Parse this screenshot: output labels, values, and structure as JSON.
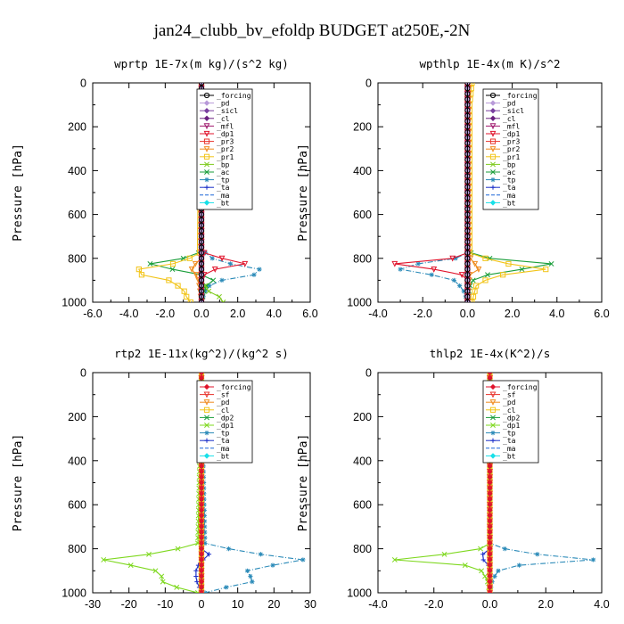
{
  "suptitle": "jan24_clubb_bv_efoldp  BUDGET at250E,-2N",
  "chart_data": [
    {
      "type": "line",
      "title": "wprtp  1E-7x(m kg)/(s^2 kg)",
      "ylabel": "Pressure [hPa]",
      "xlim": [
        -6,
        6
      ],
      "ylim": [
        1000,
        0
      ],
      "xticks": [
        "-6.0",
        "-4.0",
        "-2.0",
        "0.0",
        "2.0",
        "4.0",
        "6.0"
      ],
      "xtick_values": [
        -6,
        -4,
        -2,
        0,
        2,
        4,
        6
      ],
      "yticks": [
        "0",
        "200",
        "400",
        "600",
        "800",
        "1000"
      ],
      "ytick_values": [
        0,
        200,
        400,
        600,
        800,
        1000
      ],
      "legend_position": "upper-right",
      "series": [
        {
          "name": "_forcing",
          "color": "#000000",
          "marker": "circle",
          "p": [
            0,
            1000
          ],
          "v": [
            0,
            0
          ]
        },
        {
          "name": "_pd",
          "color": "#b89ad9",
          "marker": "diamond",
          "p": [
            0,
            1000
          ],
          "v": [
            0,
            0
          ]
        },
        {
          "name": "_sicl",
          "color": "#7a3fa0",
          "marker": "diamond",
          "p": [
            0,
            1000
          ],
          "v": [
            0,
            0
          ]
        },
        {
          "name": "_cl",
          "color": "#6a2080",
          "marker": "diamond",
          "p": [
            0,
            1000
          ],
          "v": [
            0,
            0
          ]
        },
        {
          "name": "_mfl",
          "color": "#a0186e",
          "marker": "tri",
          "p": [
            0,
            1000
          ],
          "v": [
            0,
            0
          ]
        },
        {
          "name": "_dp1",
          "color": "#e0142c",
          "marker": "tri",
          "p": [
            0,
            760,
            790,
            820,
            840,
            860,
            880,
            900,
            1000
          ],
          "v": [
            0,
            0,
            0.3,
            2.8,
            1.2,
            0.3,
            0.1,
            0,
            0
          ]
        },
        {
          "name": "_pr3",
          "color": "#e8342c",
          "marker": "square",
          "p": [
            0,
            1000
          ],
          "v": [
            0,
            0
          ]
        },
        {
          "name": "_pr2",
          "color": "#f08c1e",
          "marker": "tri",
          "p": [
            0,
            800,
            830,
            860,
            880,
            1000
          ],
          "v": [
            0,
            0,
            -0.4,
            -0.6,
            -0.2,
            0
          ]
        },
        {
          "name": "_pr1",
          "color": "#f2c418",
          "marker": "square",
          "p": [
            0,
            780,
            820,
            860,
            900,
            940,
            980,
            1000
          ],
          "v": [
            0,
            -0.1,
            -1.2,
            -4.2,
            -1.8,
            -1.0,
            -0.8,
            -0.6
          ]
        },
        {
          "name": "_bp",
          "color": "#7ecb1e",
          "marker": "cross",
          "p": [
            0,
            900,
            950,
            980,
            1000
          ],
          "v": [
            0,
            0,
            0.4,
            1.1,
            1.2
          ]
        },
        {
          "name": "_ac",
          "color": "#1a9e3a",
          "marker": "cross",
          "p": [
            0,
            770,
            800,
            830,
            860,
            890,
            930,
            1000
          ],
          "v": [
            0,
            0,
            -1.0,
            -3.2,
            -0.8,
            0.8,
            0.2,
            0
          ]
        },
        {
          "name": "_tp",
          "color": "#2a8ab8",
          "marker": "star",
          "p": [
            0,
            760,
            800,
            830,
            850,
            870,
            890,
            930,
            1000
          ],
          "v": [
            0,
            0,
            0.6,
            1.8,
            3.2,
            3.4,
            1.4,
            0.3,
            0
          ]
        },
        {
          "name": "_ta",
          "color": "#1a2ec8",
          "marker": "plus",
          "p": [
            0,
            1000
          ],
          "v": [
            0,
            0
          ]
        },
        {
          "name": "_ma",
          "color": "#1a66d8",
          "marker": "none",
          "p": [
            0,
            1000
          ],
          "v": [
            0,
            0
          ]
        },
        {
          "name": "_bt",
          "color": "#18e0e8",
          "marker": "diamond",
          "p": [
            0,
            1000
          ],
          "v": [
            0,
            0
          ]
        }
      ]
    },
    {
      "type": "line",
      "title": "wpthlp  1E-4x(m K)/s^2",
      "ylabel": "Pressure [hPa]",
      "xlim": [
        -4,
        6
      ],
      "ylim": [
        1000,
        0
      ],
      "xticks": [
        "-4.0",
        "-2.0",
        "0.0",
        "2.0",
        "4.0",
        "6.0"
      ],
      "xtick_values": [
        -4,
        -2,
        0,
        2,
        4,
        6
      ],
      "yticks": [
        "0",
        "200",
        "400",
        "600",
        "800",
        "1000"
      ],
      "ytick_values": [
        0,
        200,
        400,
        600,
        800,
        1000
      ],
      "legend_position": "upper-right",
      "series": [
        {
          "name": "_forcing",
          "color": "#000000",
          "marker": "circle",
          "p": [
            0,
            1000
          ],
          "v": [
            0,
            0
          ]
        },
        {
          "name": "_pd",
          "color": "#b89ad9",
          "marker": "diamond",
          "p": [
            0,
            1000
          ],
          "v": [
            0,
            0
          ]
        },
        {
          "name": "_sicl",
          "color": "#7a3fa0",
          "marker": "diamond",
          "p": [
            0,
            1000
          ],
          "v": [
            0,
            0
          ]
        },
        {
          "name": "_cl",
          "color": "#6a2080",
          "marker": "diamond",
          "p": [
            0,
            1000
          ],
          "v": [
            0,
            0
          ]
        },
        {
          "name": "_mfl",
          "color": "#a0186e",
          "marker": "tri",
          "p": [
            0,
            1000
          ],
          "v": [
            0,
            0
          ]
        },
        {
          "name": "_dp1",
          "color": "#e0142c",
          "marker": "tri",
          "p": [
            0,
            780,
            810,
            830,
            850,
            870,
            900,
            1000
          ],
          "v": [
            0,
            0,
            -1.0,
            -4.0,
            -1.5,
            -0.3,
            0,
            0
          ]
        },
        {
          "name": "_pr3",
          "color": "#e8342c",
          "marker": "square",
          "p": [
            0,
            1000
          ],
          "v": [
            0,
            0
          ]
        },
        {
          "name": "_pr2",
          "color": "#f08c1e",
          "marker": "tri",
          "p": [
            0,
            790,
            820,
            850,
            870,
            1000
          ],
          "v": [
            0.05,
            0.05,
            0.3,
            0.5,
            0.1,
            0
          ]
        },
        {
          "name": "_pr1",
          "color": "#f2c418",
          "marker": "square",
          "p": [
            0,
            100,
            780,
            820,
            850,
            880,
            920,
            1000
          ],
          "v": [
            0.2,
            0.1,
            0.1,
            1.5,
            3.5,
            1.2,
            0.4,
            0.2
          ]
        },
        {
          "name": "_bp",
          "color": "#7ecb1e",
          "marker": "cross",
          "p": [
            0,
            1000
          ],
          "v": [
            0,
            0
          ]
        },
        {
          "name": "_ac",
          "color": "#1a9e3a",
          "marker": "cross",
          "p": [
            0,
            770,
            800,
            830,
            860,
            890,
            930,
            1000
          ],
          "v": [
            0,
            0,
            1.0,
            4.3,
            1.5,
            0.3,
            0.1,
            0
          ]
        },
        {
          "name": "_tp",
          "color": "#2a8ab8",
          "marker": "star",
          "p": [
            0,
            780,
            810,
            840,
            870,
            900,
            940,
            1000
          ],
          "v": [
            0,
            0,
            -0.8,
            -3.6,
            -1.8,
            -0.6,
            -0.2,
            0
          ]
        },
        {
          "name": "_ta",
          "color": "#1a2ec8",
          "marker": "plus",
          "p": [
            0,
            1000
          ],
          "v": [
            0,
            0
          ]
        },
        {
          "name": "_ma",
          "color": "#1a66d8",
          "marker": "none",
          "p": [
            0,
            1000
          ],
          "v": [
            0,
            0
          ]
        },
        {
          "name": "_bt",
          "color": "#18e0e8",
          "marker": "diamond",
          "p": [
            0,
            1000
          ],
          "v": [
            0,
            0
          ]
        }
      ]
    },
    {
      "type": "line",
      "title": "rtp2  1E-11x(kg^2)/(kg^2 s)",
      "ylabel": "Pressure [hPa]",
      "xlim": [
        -30,
        30
      ],
      "ylim": [
        1000,
        0
      ],
      "xticks": [
        "-30",
        "-20",
        "-10",
        "0",
        "10",
        "20",
        "30"
      ],
      "xtick_values": [
        -30,
        -20,
        -10,
        0,
        10,
        20,
        30
      ],
      "yticks": [
        "0",
        "200",
        "400",
        "600",
        "800",
        "1000"
      ],
      "ytick_values": [
        0,
        200,
        400,
        600,
        800,
        1000
      ],
      "legend_position": "upper-right",
      "series": [
        {
          "name": "_forcing",
          "color": "#e0142c",
          "marker": "diamond",
          "p": [
            0,
            1000
          ],
          "v": [
            0,
            0
          ]
        },
        {
          "name": "_sf",
          "color": "#e8342c",
          "marker": "tri",
          "p": [
            0,
            1000
          ],
          "v": [
            0,
            0
          ]
        },
        {
          "name": "_pd",
          "color": "#f08c1e",
          "marker": "tri",
          "p": [
            0,
            1000
          ],
          "v": [
            0,
            0
          ]
        },
        {
          "name": "_cl",
          "color": "#f2c418",
          "marker": "square",
          "p": [
            0,
            1000
          ],
          "v": [
            0,
            0
          ]
        },
        {
          "name": "_dp2",
          "color": "#1a9e3a",
          "marker": "cross",
          "p": [
            0,
            1000
          ],
          "v": [
            0,
            0
          ]
        },
        {
          "name": "_dp1",
          "color": "#7ed81e",
          "marker": "cross",
          "p": [
            0,
            780,
            820,
            850,
            880,
            910,
            940,
            970,
            1000
          ],
          "v": [
            0,
            -1,
            -12,
            -27,
            -18,
            -10,
            -12,
            -8,
            -1
          ]
        },
        {
          "name": "_tp",
          "color": "#2a8ab8",
          "marker": "star",
          "p": [
            0,
            780,
            820,
            850,
            880,
            910,
            940,
            970,
            1000
          ],
          "v": [
            0,
            1,
            14,
            28,
            18,
            10,
            17,
            8,
            1
          ]
        },
        {
          "name": "_ta",
          "color": "#1a2ec8",
          "marker": "plus",
          "p": [
            0,
            800,
            830,
            860,
            900,
            940,
            980,
            1000
          ],
          "v": [
            0,
            0,
            2.5,
            -0.5,
            -1.5,
            -1.5,
            -0.5,
            0
          ]
        },
        {
          "name": "_ma",
          "color": "#1a66d8",
          "marker": "none",
          "p": [
            0,
            1000
          ],
          "v": [
            0,
            0
          ]
        },
        {
          "name": "_bt",
          "color": "#18e0e8",
          "marker": "diamond",
          "p": [
            0,
            1000
          ],
          "v": [
            0,
            0
          ]
        }
      ]
    },
    {
      "type": "line",
      "title": "thlp2  1E-4x(K^2)/s",
      "ylabel": "Pressure [hPa]",
      "xlim": [
        -4,
        4
      ],
      "ylim": [
        1000,
        0
      ],
      "xticks": [
        "-4.0",
        "-2.0",
        "0.0",
        "2.0",
        "4.0"
      ],
      "xtick_values": [
        -4,
        -2,
        0,
        2,
        4
      ],
      "yticks": [
        "0",
        "200",
        "400",
        "600",
        "800",
        "1000"
      ],
      "ytick_values": [
        0,
        200,
        400,
        600,
        800,
        1000
      ],
      "legend_position": "upper-right",
      "series": [
        {
          "name": "_forcing",
          "color": "#e0142c",
          "marker": "diamond",
          "p": [
            0,
            1000
          ],
          "v": [
            0,
            0
          ]
        },
        {
          "name": "_sf",
          "color": "#e8342c",
          "marker": "tri",
          "p": [
            0,
            1000
          ],
          "v": [
            0,
            0
          ]
        },
        {
          "name": "_pd",
          "color": "#f08c1e",
          "marker": "tri",
          "p": [
            0,
            1000
          ],
          "v": [
            0,
            0
          ]
        },
        {
          "name": "_cl",
          "color": "#f2c418",
          "marker": "square",
          "p": [
            0,
            1000
          ],
          "v": [
            0,
            0
          ]
        },
        {
          "name": "_dp2",
          "color": "#1a9e3a",
          "marker": "cross",
          "p": [
            0,
            1000
          ],
          "v": [
            0,
            0
          ]
        },
        {
          "name": "_dp1",
          "color": "#7ed81e",
          "marker": "cross",
          "p": [
            0,
            780,
            810,
            830,
            850,
            870,
            900,
            940,
            1000
          ],
          "v": [
            0,
            0,
            -0.5,
            -2.0,
            -3.4,
            -1.0,
            -0.3,
            -0.1,
            0
          ]
        },
        {
          "name": "_tp",
          "color": "#2a8ab8",
          "marker": "star",
          "p": [
            0,
            780,
            810,
            830,
            850,
            870,
            900,
            940,
            1000
          ],
          "v": [
            0,
            0,
            0.8,
            2.0,
            3.7,
            1.2,
            0.3,
            0.1,
            0
          ]
        },
        {
          "name": "_ta",
          "color": "#1a2ec8",
          "marker": "plus",
          "p": [
            0,
            800,
            830,
            860,
            880,
            1000
          ],
          "v": [
            0,
            0,
            -0.3,
            -0.2,
            0,
            0
          ]
        },
        {
          "name": "_ma",
          "color": "#1a66d8",
          "marker": "none",
          "p": [
            0,
            1000
          ],
          "v": [
            0,
            0
          ]
        },
        {
          "name": "_bt",
          "color": "#18e0e8",
          "marker": "diamond",
          "p": [
            0,
            1000
          ],
          "v": [
            0,
            0
          ]
        }
      ]
    }
  ]
}
